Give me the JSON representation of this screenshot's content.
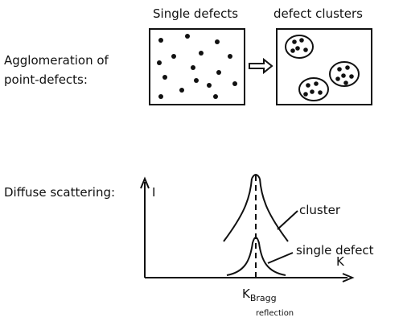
{
  "panels": {
    "single_title": "Single defects",
    "cluster_title": "defect clusters"
  },
  "agglomeration_label": [
    "Agglomeration of",
    "point-defects:"
  ],
  "scattering": {
    "label": "Diffuse scattering:",
    "y_axis": "I",
    "x_axis": "K",
    "cluster": "cluster",
    "single": "single defect",
    "bragg": {
      "symbol": "K",
      "subscript": "Bragg",
      "note": "reflection"
    }
  }
}
